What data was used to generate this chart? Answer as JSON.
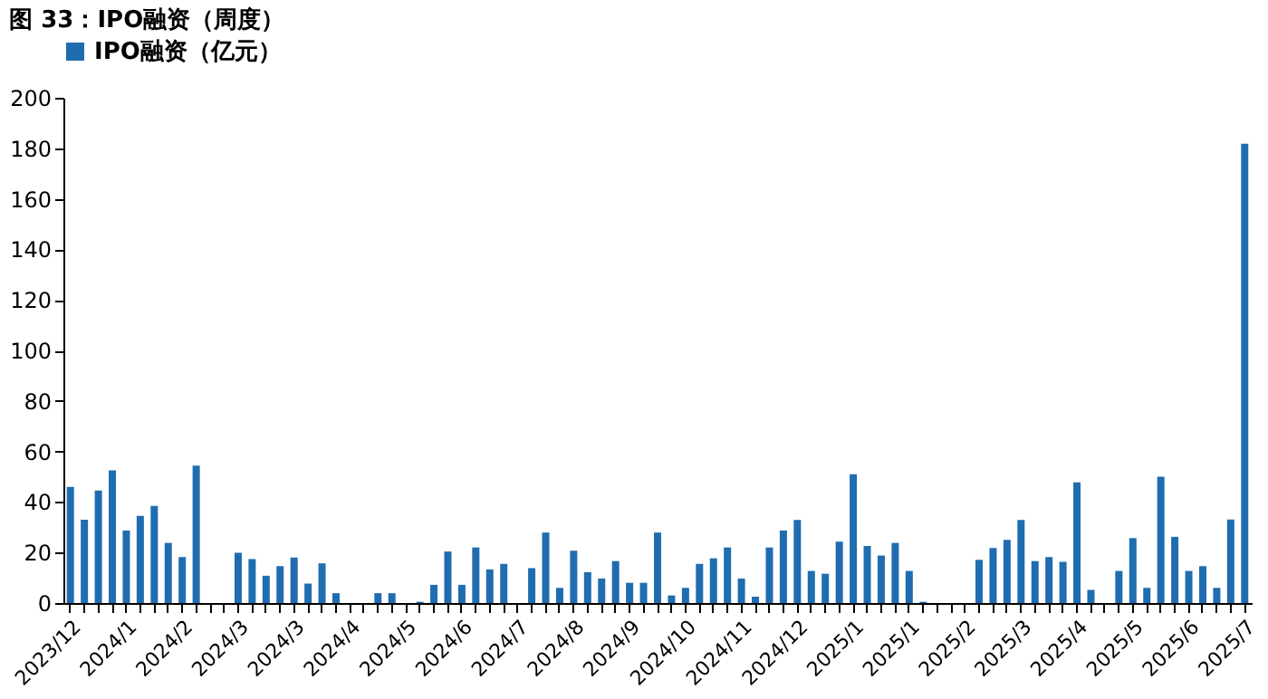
{
  "chart_data": {
    "type": "bar",
    "title": "图 33：IPO融资（周度）",
    "categories": [
      "2023/12",
      null,
      null,
      null,
      "2024/1",
      null,
      null,
      null,
      "2024/2",
      null,
      null,
      null,
      "2024/3",
      null,
      null,
      null,
      "2024/3",
      null,
      null,
      null,
      "2024/4",
      null,
      null,
      null,
      "2024/5",
      null,
      null,
      null,
      "2024/6",
      null,
      null,
      null,
      "2024/7",
      null,
      null,
      null,
      "2024/8",
      null,
      null,
      null,
      "2024/9",
      null,
      null,
      null,
      "2024/10",
      null,
      null,
      null,
      "2024/11",
      null,
      null,
      null,
      "2024/12",
      null,
      null,
      null,
      "2025/1",
      null,
      null,
      null,
      "2025/1",
      null,
      null,
      null,
      "2025/2",
      null,
      null,
      null,
      "2025/3",
      null,
      null,
      null,
      "2025/4",
      null,
      null,
      null,
      "2025/5",
      null,
      null,
      null,
      "2025/6",
      null,
      null,
      null,
      "2025/7"
    ],
    "series": [
      {
        "name": "IPO融资（亿元）",
        "color": "#1f6db0",
        "values": [
          46,
          33,
          44.5,
          52.5,
          28.7,
          34.5,
          38.4,
          23.8,
          18.2,
          54.4,
          null,
          null,
          19.9,
          17.4,
          10.8,
          14.6,
          18,
          7.7,
          15.7,
          3.9,
          null,
          null,
          3.9,
          3.9,
          null,
          0.5,
          7.2,
          20.4,
          7.2,
          22,
          13.3,
          15.5,
          null,
          13.8,
          27.9,
          6,
          20.7,
          12.2,
          9.7,
          16.6,
          8,
          8,
          27.9,
          3,
          6,
          15.5,
          17.7,
          22,
          9.7,
          2.5,
          22,
          28.7,
          32.9,
          12.7,
          11.6,
          24.3,
          51,
          22.6,
          18.8,
          23.8,
          12.7,
          0.5,
          null,
          null,
          null,
          17.1,
          21.8,
          25,
          32.9,
          16.6,
          18.2,
          16.3,
          47.8,
          5.2,
          null,
          12.7,
          25.7,
          6,
          50,
          26.2,
          12.7,
          14.6,
          6,
          33.1,
          181.8
        ]
      }
    ],
    "ylim": [
      0,
      200
    ],
    "yticks": [
      0,
      20,
      40,
      60,
      80,
      100,
      120,
      140,
      160,
      180,
      200
    ],
    "grid": false,
    "legend": "top"
  }
}
